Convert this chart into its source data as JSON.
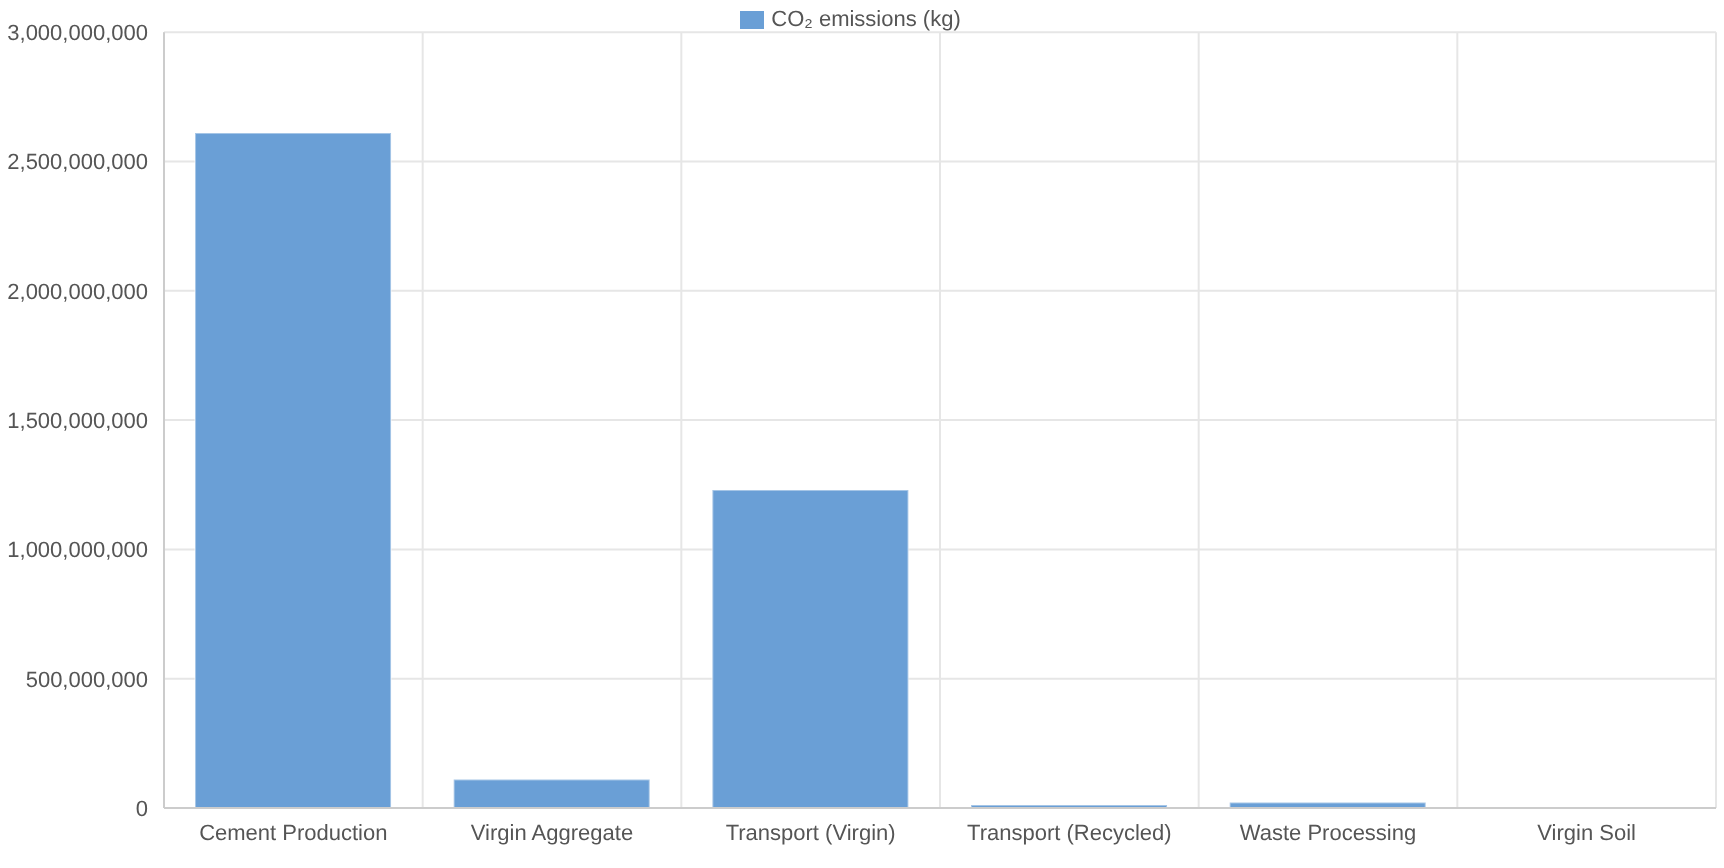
{
  "chart_data": {
    "type": "bar",
    "categories": [
      "Cement Production",
      "Virgin Aggregate",
      "Transport (Virgin)",
      "Transport (Recycled)",
      "Waste Processing",
      "Virgin Soil"
    ],
    "series": [
      {
        "name": "CO₂ emissions (kg)",
        "color": "#6a9fd6",
        "values": [
          2610000000,
          110000000,
          1230000000,
          12000000,
          21000000,
          null
        ]
      }
    ],
    "ylim": [
      0,
      3000000000
    ],
    "yticks": [
      0,
      {
        "value": 500000000,
        "label": "500,000,000"
      },
      {
        "value": 1000000000,
        "label": "1,000,000,000"
      },
      {
        "value": 1500000000,
        "label": "1,500,000,000"
      },
      {
        "value": 2000000000,
        "label": "2,000,000,000"
      },
      {
        "value": 2500000000,
        "label": "2,500,000,000"
      },
      {
        "value": 3000000000,
        "label": "3,000,000,000"
      }
    ],
    "grid": true,
    "legend": "top"
  }
}
